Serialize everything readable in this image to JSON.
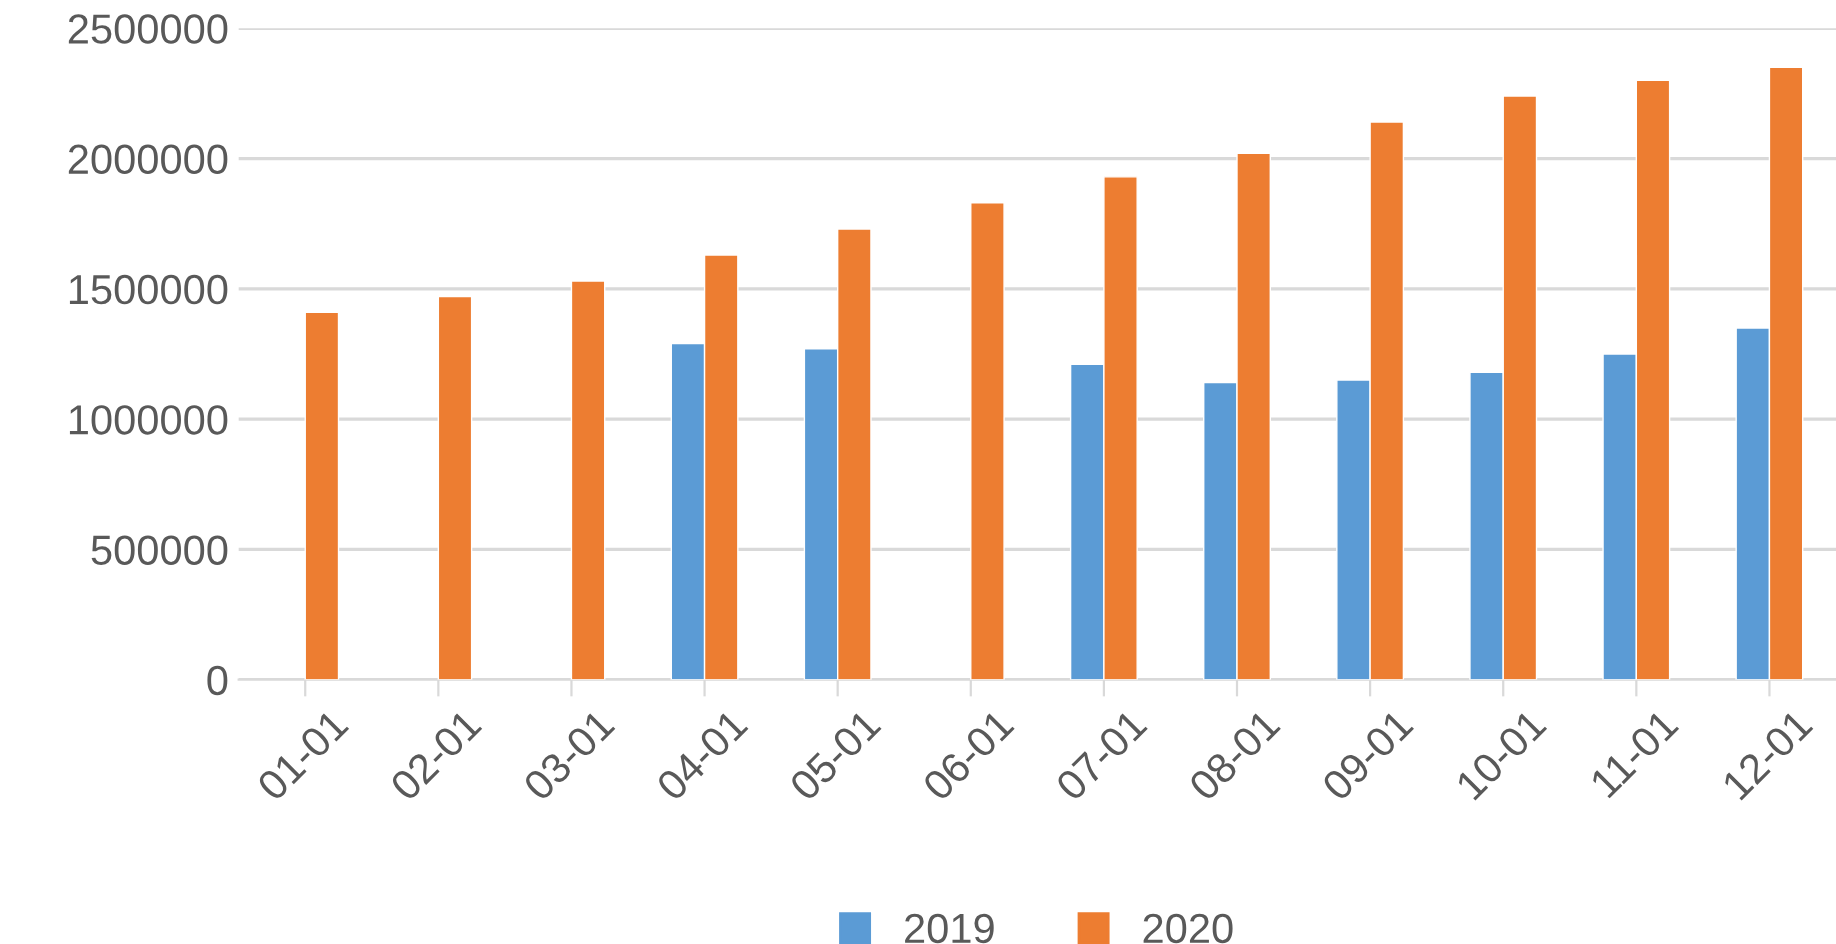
{
  "chart_data": {
    "type": "bar",
    "categories": [
      "01-01",
      "02-01",
      "03-01",
      "04-01",
      "05-01",
      "06-01",
      "07-01",
      "08-01",
      "09-01",
      "10-01",
      "11-01",
      "12-01"
    ],
    "series": [
      {
        "name": "2019",
        "color": "#5b9bd5",
        "values": [
          null,
          null,
          null,
          1290000,
          1270000,
          null,
          1210000,
          1140000,
          1150000,
          1180000,
          1250000,
          1350000
        ]
      },
      {
        "name": "2020",
        "color": "#ed7d31",
        "values": [
          1410000,
          1470000,
          1530000,
          1630000,
          1730000,
          1830000,
          1930000,
          2020000,
          2140000,
          2240000,
          2300000,
          2350000
        ]
      }
    ],
    "ylim": [
      0,
      2500000
    ],
    "yticks": [
      0,
      500000,
      1000000,
      1500000,
      2000000,
      2500000
    ],
    "grid": "y",
    "legend": "bottom"
  }
}
